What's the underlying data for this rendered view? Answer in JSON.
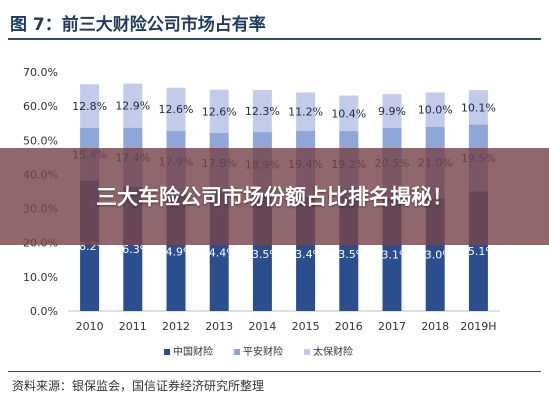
{
  "figure_title": "图 7：前三大财险公司市场占有率",
  "overlay_headline": "三大车险公司市场份额占比排名揭秘！",
  "source_note": "资料来源：银保监会，国信证券经济研究所整理",
  "colors": {
    "series_1": "#2b4f8e",
    "series_2": "#8ea6d8",
    "series_3": "#c2cbea",
    "overlay": "#76454c",
    "title_text": "#1f3b5c"
  },
  "chart_data": {
    "type": "bar",
    "stacked": true,
    "categories": [
      "2010",
      "2011",
      "2012",
      "2013",
      "2014",
      "2015",
      "2016",
      "2017",
      "2018",
      "2019H"
    ],
    "series": [
      {
        "name": "中国财险",
        "values": [
          38.2,
          36.3,
          34.9,
          34.4,
          33.5,
          33.4,
          33.5,
          33.1,
          33.0,
          35.1
        ]
      },
      {
        "name": "平安财险",
        "values": [
          15.4,
          17.4,
          17.9,
          17.8,
          18.9,
          19.4,
          19.2,
          20.5,
          21.0,
          19.5
        ]
      },
      {
        "name": "太保财险",
        "values": [
          12.8,
          12.9,
          12.6,
          12.6,
          12.3,
          11.2,
          10.4,
          9.9,
          10.0,
          10.1
        ]
      }
    ],
    "y_ticks": [
      "0.0%",
      "10.0%",
      "20.0%",
      "30.0%",
      "40.0%",
      "50.0%",
      "60.0%",
      "70.0%"
    ],
    "ylim": [
      0,
      70
    ],
    "value_suffix": "%",
    "grid": false,
    "legend_position": "bottom"
  }
}
